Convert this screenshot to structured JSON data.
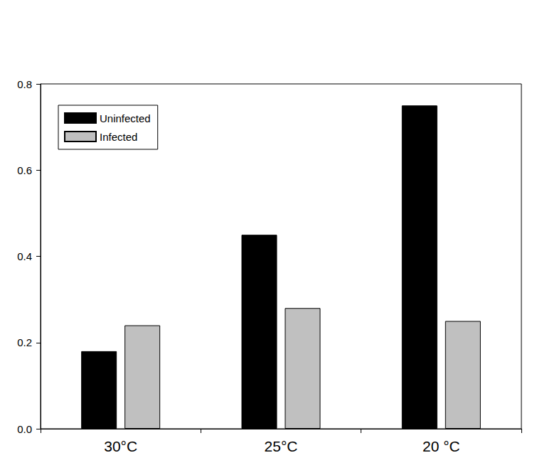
{
  "chart_data": {
    "type": "bar",
    "categories": [
      "30°C",
      "25°C",
      "20 °C"
    ],
    "series": [
      {
        "name": "Uninfected",
        "color": "#000000",
        "values": [
          0.18,
          0.45,
          0.75
        ]
      },
      {
        "name": "Infected",
        "color": "#c0c0c0",
        "values": [
          0.24,
          0.28,
          0.25
        ]
      }
    ],
    "ylim": [
      0,
      0.8
    ],
    "yticks": [
      {
        "value": 0,
        "label": "0.0"
      },
      0.2,
      0.4,
      0.6,
      0.8
    ],
    "grid": false,
    "legend": "upper left"
  }
}
